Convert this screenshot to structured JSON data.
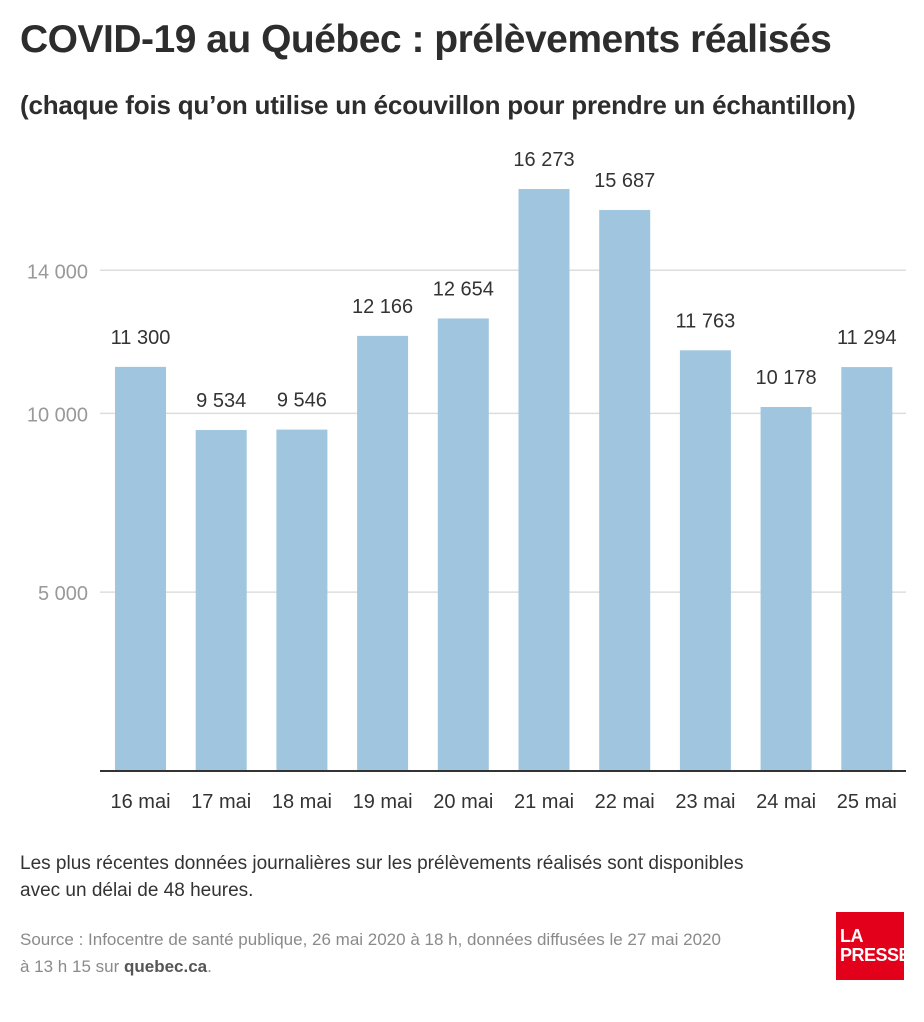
{
  "header": {
    "title": "COVID-19 au Québec : prélèvements réalisés",
    "subtitle": "(chaque fois qu’on utilise un écouvillon pour prendre un échantillon)"
  },
  "footer": {
    "note_line1": "Les plus récentes données journalières sur les prélèvements réalisés sont disponibles",
    "note_line2": "avec un délai de 48 heures.",
    "source_line1": "Source : Infocentre de santé publique, 26 mai 2020 à 18 h, données diffusées le 27 mai 2020",
    "source_line2_prefix": "à 13 h 15 sur ",
    "source_link": "quebec.ca",
    "source_line2_suffix": "."
  },
  "logo": {
    "line1": "LA",
    "line2": "PRESSE",
    "color": "#e2001a"
  },
  "colors": {
    "bar": "#a0c6df",
    "grid": "#dddddd",
    "axis": "#333333",
    "tick_label": "#999999",
    "value_label": "#333333"
  },
  "chart_data": {
    "type": "bar",
    "categories": [
      "16 mai",
      "17 mai",
      "18 mai",
      "19 mai",
      "20 mai",
      "21 mai",
      "22 mai",
      "23 mai",
      "24 mai",
      "25 mai"
    ],
    "values": [
      11300,
      9534,
      9546,
      12166,
      12654,
      16273,
      15687,
      11763,
      10178,
      11294
    ],
    "value_labels": [
      "11 300",
      "9 534",
      "9 546",
      "12 166",
      "12 654",
      "16 273",
      "15 687",
      "11 763",
      "10 178",
      "11 294"
    ],
    "yticks": [
      5000,
      10000,
      14000
    ],
    "ytick_labels": [
      "5 000",
      "10 000",
      "14 000"
    ],
    "ylim": [
      0,
      16273
    ],
    "grid": true,
    "legend": "none"
  }
}
